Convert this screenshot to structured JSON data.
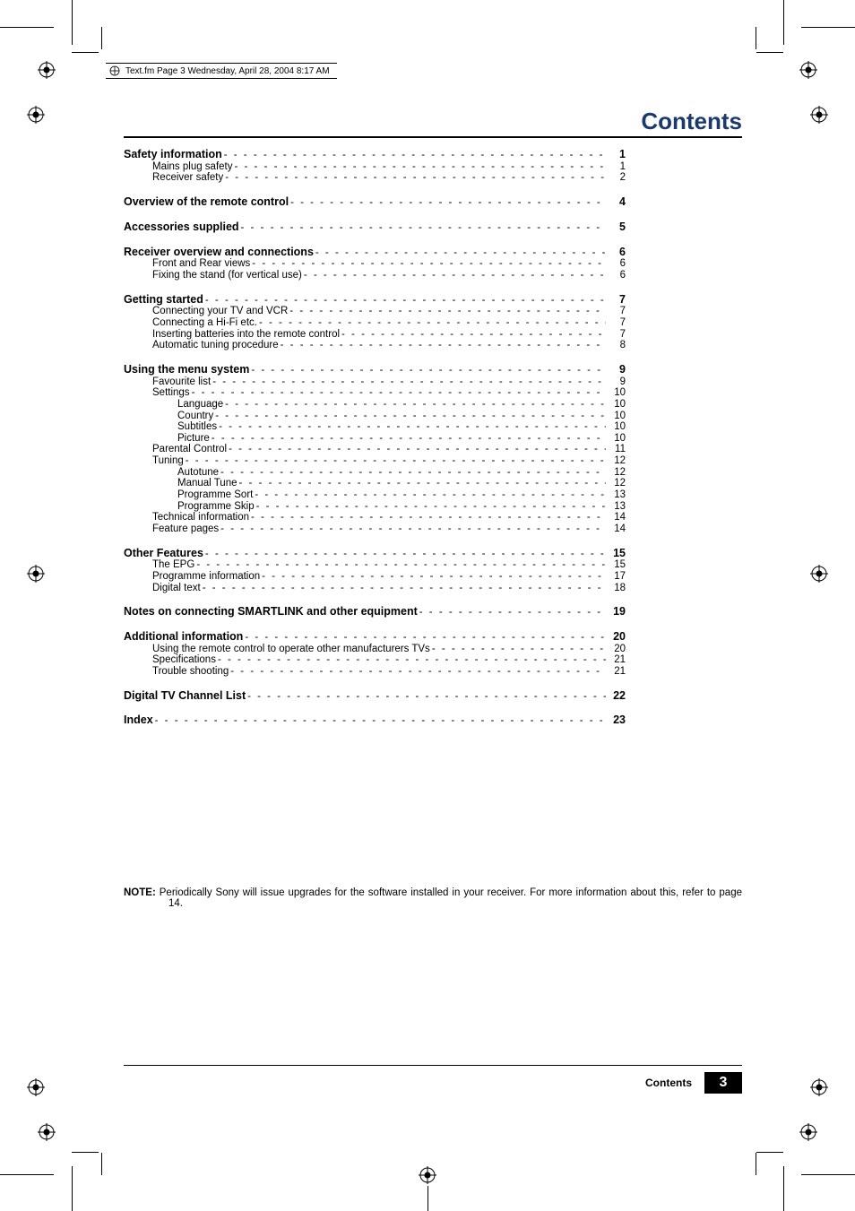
{
  "colors": {
    "text": "#000000",
    "bg": "#ffffff",
    "title": "#1a3a6e",
    "footer_bg": "#000000",
    "footer_fg": "#ffffff"
  },
  "meta_header": "Text.fm  Page 3  Wednesday, April 28, 2004  8:17 AM",
  "title": "Contents",
  "note": {
    "label": "NOTE:",
    "text": "Periodically Sony will issue upgrades for the software installed in your receiver. For more information about this, refer to page 14."
  },
  "footer": {
    "label": "Contents",
    "page": "3"
  },
  "toc": [
    {
      "heading": {
        "label": "Safety information",
        "page": "1"
      },
      "children": [
        {
          "level": 1,
          "label": "Mains plug safety",
          "page": "1"
        },
        {
          "level": 1,
          "label": "Receiver safety",
          "page": "2"
        }
      ]
    },
    {
      "heading": {
        "label": "Overview of the remote control",
        "page": "4"
      },
      "children": []
    },
    {
      "heading": {
        "label": "Accessories supplied",
        "page": "5"
      },
      "children": []
    },
    {
      "heading": {
        "label": "Receiver overview and connections",
        "page": "6"
      },
      "children": [
        {
          "level": 1,
          "label": "Front and Rear views",
          "page": "6"
        },
        {
          "level": 1,
          "label": "Fixing the stand (for vertical use)",
          "page": "6"
        }
      ]
    },
    {
      "heading": {
        "label": "Getting started",
        "page": "7"
      },
      "children": [
        {
          "level": 1,
          "label": "Connecting your TV and VCR",
          "page": "7"
        },
        {
          "level": 1,
          "label": "Connecting a Hi-Fi etc.",
          "page": "7"
        },
        {
          "level": 1,
          "label": "Inserting batteries into the remote control",
          "page": "7"
        },
        {
          "level": 1,
          "label": "Automatic tuning procedure",
          "page": "8"
        }
      ]
    },
    {
      "heading": {
        "label": "Using the menu system",
        "page": "9"
      },
      "children": [
        {
          "level": 1,
          "label": "Favourite list",
          "page": "9"
        },
        {
          "level": 1,
          "label": "Settings",
          "page": "10"
        },
        {
          "level": 2,
          "label": "Language",
          "page": "10"
        },
        {
          "level": 2,
          "label": "Country",
          "page": "10"
        },
        {
          "level": 2,
          "label": "Subtitles",
          "page": "10"
        },
        {
          "level": 2,
          "label": "Picture",
          "page": "10"
        },
        {
          "level": 1,
          "label": "Parental Control",
          "page": "11"
        },
        {
          "level": 1,
          "label": "Tuning",
          "page": "12"
        },
        {
          "level": 2,
          "label": "Autotune",
          "page": "12"
        },
        {
          "level": 2,
          "label": "Manual Tune",
          "page": "12"
        },
        {
          "level": 2,
          "label": "Programme Sort",
          "page": "13"
        },
        {
          "level": 2,
          "label": "Programme Skip",
          "page": "13"
        },
        {
          "level": 1,
          "label": "Technical information",
          "page": "14"
        },
        {
          "level": 1,
          "label": "Feature pages",
          "page": "14"
        }
      ]
    },
    {
      "heading": {
        "label": "Other Features",
        "page": "15"
      },
      "children": [
        {
          "level": 1,
          "label": "The EPG",
          "page": "15"
        },
        {
          "level": 1,
          "label": "Programme information",
          "page": "17"
        },
        {
          "level": 1,
          "label": "Digital text",
          "page": "18"
        }
      ]
    },
    {
      "heading": {
        "label": "Notes on connecting SMARTLINK and other equipment",
        "page": "19"
      },
      "children": []
    },
    {
      "heading": {
        "label": "Additional information",
        "page": "20"
      },
      "children": [
        {
          "level": 1,
          "label": "Using the remote control  to operate other manufacturers TVs",
          "page": "20"
        },
        {
          "level": 1,
          "label": "Specifications",
          "page": "21"
        },
        {
          "level": 1,
          "label": "Trouble shooting",
          "page": "21"
        }
      ]
    },
    {
      "heading": {
        "label": "Digital TV Channel List",
        "page": "22"
      },
      "children": []
    },
    {
      "heading": {
        "label": "Index",
        "page": "23"
      },
      "children": []
    }
  ]
}
